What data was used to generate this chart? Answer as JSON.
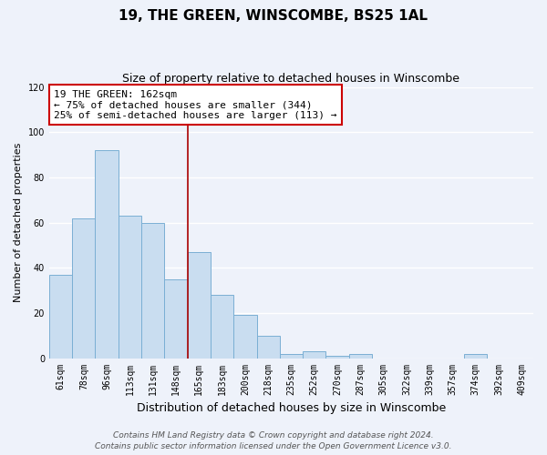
{
  "title": "19, THE GREEN, WINSCOMBE, BS25 1AL",
  "subtitle": "Size of property relative to detached houses in Winscombe",
  "xlabel": "Distribution of detached houses by size in Winscombe",
  "ylabel": "Number of detached properties",
  "categories": [
    "61sqm",
    "78sqm",
    "96sqm",
    "113sqm",
    "131sqm",
    "148sqm",
    "165sqm",
    "183sqm",
    "200sqm",
    "218sqm",
    "235sqm",
    "252sqm",
    "270sqm",
    "287sqm",
    "305sqm",
    "322sqm",
    "339sqm",
    "357sqm",
    "374sqm",
    "392sqm",
    "409sqm"
  ],
  "values": [
    37,
    62,
    92,
    63,
    60,
    35,
    47,
    28,
    19,
    10,
    2,
    3,
    1,
    2,
    0,
    0,
    0,
    0,
    2,
    0,
    0
  ],
  "bar_color": "#c9ddf0",
  "bar_edge_color": "#7aafd4",
  "vline_color": "#aa0000",
  "annotation_line1": "19 THE GREEN: 162sqm",
  "annotation_line2": "← 75% of detached houses are smaller (344)",
  "annotation_line3": "25% of semi-detached houses are larger (113) →",
  "annotation_box_color": "#cc0000",
  "annotation_box_fill": "#ffffff",
  "ylim": [
    0,
    120
  ],
  "yticks": [
    0,
    20,
    40,
    60,
    80,
    100,
    120
  ],
  "footer_line1": "Contains HM Land Registry data © Crown copyright and database right 2024.",
  "footer_line2": "Contains public sector information licensed under the Open Government Licence v3.0.",
  "bg_color": "#eef2fa",
  "grid_color": "#ffffff",
  "title_fontsize": 11,
  "subtitle_fontsize": 9,
  "xlabel_fontsize": 9,
  "ylabel_fontsize": 8,
  "tick_fontsize": 7,
  "annotation_fontsize": 8,
  "footer_fontsize": 6.5
}
